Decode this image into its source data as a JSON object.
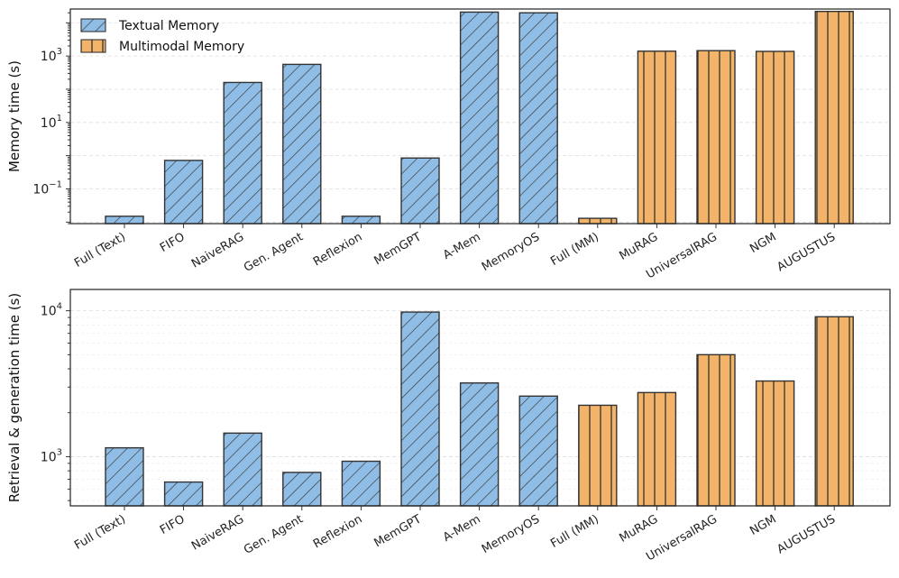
{
  "chart_data": [
    {
      "type": "bar",
      "yscale": "log",
      "ylabel": "Memory time (s)",
      "xlabel": "",
      "ylim": [
        0.009,
        26000
      ],
      "yticks": [
        0.1,
        10,
        1000
      ],
      "ytick_labels": [
        {
          "base": "10",
          "exp": "−1"
        },
        {
          "base": "10",
          "exp": "1"
        },
        {
          "base": "10",
          "exp": "3"
        }
      ],
      "categories": [
        "Full (Text)",
        "FIFO",
        "NaiveRAG",
        "Gen. Agent",
        "Reflexion",
        "MemGPT",
        "A-Mem",
        "MemoryOS",
        "Full (MM)",
        "MuRAG",
        "UniversalRAG",
        "NGM",
        "AUGUSTUS"
      ],
      "groups": [
        "Textual Memory",
        "Textual Memory",
        "Textual Memory",
        "Textual Memory",
        "Textual Memory",
        "Textual Memory",
        "Textual Memory",
        "Textual Memory",
        "Multimodal Memory",
        "Multimodal Memory",
        "Multimodal Memory",
        "Multimodal Memory",
        "Multimodal Memory"
      ],
      "values": [
        0.015,
        0.72,
        160,
        560,
        0.015,
        0.85,
        21000,
        20000,
        0.013,
        1400,
        1450,
        1380,
        22000
      ]
    },
    {
      "type": "bar",
      "yscale": "log",
      "ylabel": "Retrieval & generation time (s)",
      "xlabel": "",
      "ylim": [
        460,
        14000
      ],
      "yticks": [
        1000,
        10000
      ],
      "ytick_labels": [
        {
          "base": "10",
          "exp": "3"
        },
        {
          "base": "10",
          "exp": "4"
        }
      ],
      "categories": [
        "Full (Text)",
        "FIFO",
        "NaiveRAG",
        "Gen. Agent",
        "Reflexion",
        "MemGPT",
        "A-Mem",
        "MemoryOS",
        "Full (MM)",
        "MuRAG",
        "UniversalRAG",
        "NGM",
        "AUGUSTUS"
      ],
      "groups": [
        "Textual Memory",
        "Textual Memory",
        "Textual Memory",
        "Textual Memory",
        "Textual Memory",
        "Textual Memory",
        "Textual Memory",
        "Textual Memory",
        "Multimodal Memory",
        "Multimodal Memory",
        "Multimodal Memory",
        "Multimodal Memory",
        "Multimodal Memory"
      ],
      "values": [
        1150,
        670,
        1450,
        780,
        930,
        9800,
        3200,
        2600,
        2250,
        2750,
        5000,
        3300,
        9100
      ]
    }
  ],
  "legend": {
    "placement": "top-left",
    "entries": [
      {
        "label": "Textual Memory",
        "color": "#8fbde6",
        "hatch": "diagonal"
      },
      {
        "label": "Multimodal Memory",
        "color": "#f3b46a",
        "hatch": "vertical"
      }
    ]
  },
  "colors": {
    "textual": "#8fbde6",
    "multimodal": "#f3b46a",
    "edge": "#333333",
    "grid": "#dddddd"
  }
}
